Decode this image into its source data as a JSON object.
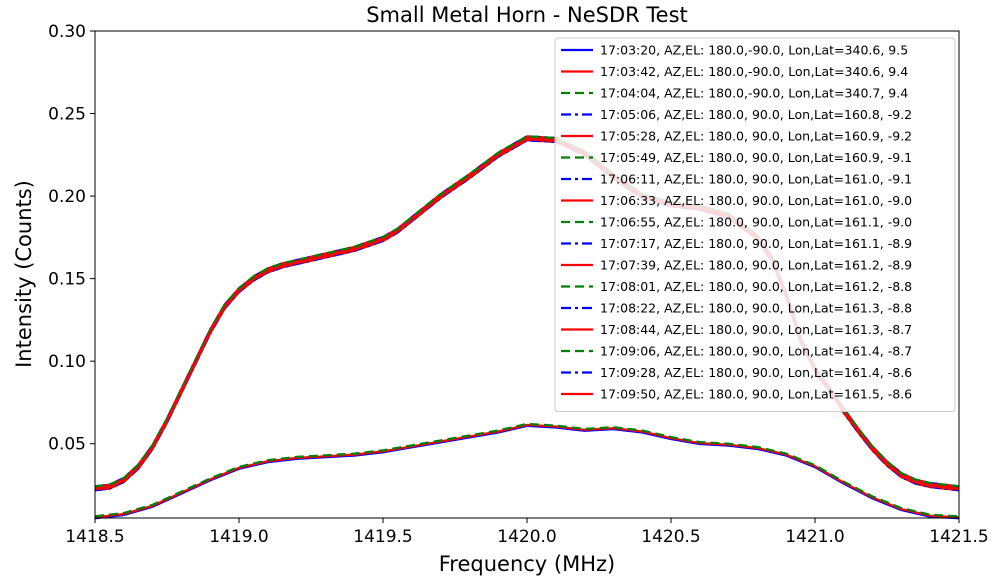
{
  "chart_data": {
    "type": "line",
    "title": "Small Metal Horn - NeSDR Test",
    "xlabel": "Frequency (MHz)",
    "ylabel": "Intensity (Counts)",
    "xlim": [
      1418.5,
      1421.5
    ],
    "ylim": [
      0.005,
      0.3
    ],
    "xticks": [
      "1418.5",
      "1419.0",
      "1419.5",
      "1420.0",
      "1420.5",
      "1421.0",
      "1421.5"
    ],
    "yticks": [
      "0.05",
      "0.10",
      "0.15",
      "0.20",
      "0.25",
      "0.30"
    ],
    "grid": false,
    "legend_position": "top-right",
    "profiles": {
      "high": {
        "x": [
          1418.5,
          1418.55,
          1418.6,
          1418.65,
          1418.7,
          1418.75,
          1418.8,
          1418.85,
          1418.9,
          1418.95,
          1419.0,
          1419.05,
          1419.1,
          1419.15,
          1419.2,
          1419.3,
          1419.4,
          1419.5,
          1419.55,
          1419.6,
          1419.7,
          1419.8,
          1419.9,
          1420.0,
          1420.1,
          1420.2,
          1420.3,
          1420.4,
          1420.5,
          1420.6,
          1420.7,
          1420.8,
          1420.85,
          1420.9,
          1420.95,
          1421.0,
          1421.05,
          1421.1,
          1421.15,
          1421.2,
          1421.25,
          1421.3,
          1421.35,
          1421.4,
          1421.45,
          1421.5
        ],
        "y": [
          0.023,
          0.024,
          0.028,
          0.036,
          0.048,
          0.064,
          0.082,
          0.1,
          0.118,
          0.133,
          0.143,
          0.15,
          0.155,
          0.158,
          0.16,
          0.164,
          0.168,
          0.174,
          0.179,
          0.186,
          0.2,
          0.212,
          0.225,
          0.235,
          0.234,
          0.226,
          0.212,
          0.2,
          0.195,
          0.193,
          0.188,
          0.175,
          0.162,
          0.14,
          0.113,
          0.095,
          0.083,
          0.07,
          0.058,
          0.047,
          0.038,
          0.031,
          0.027,
          0.025,
          0.024,
          0.023
        ]
      },
      "low": {
        "x": [
          1418.5,
          1418.6,
          1418.7,
          1418.8,
          1418.9,
          1419.0,
          1419.1,
          1419.2,
          1419.3,
          1419.4,
          1419.5,
          1419.6,
          1419.7,
          1419.8,
          1419.9,
          1420.0,
          1420.1,
          1420.2,
          1420.3,
          1420.4,
          1420.5,
          1420.6,
          1420.7,
          1420.8,
          1420.9,
          1421.0,
          1421.1,
          1421.2,
          1421.3,
          1421.4,
          1421.5
        ],
        "y": [
          0.006,
          0.008,
          0.013,
          0.021,
          0.029,
          0.036,
          0.04,
          0.042,
          0.043,
          0.044,
          0.046,
          0.049,
          0.052,
          0.055,
          0.058,
          0.062,
          0.061,
          0.059,
          0.06,
          0.058,
          0.054,
          0.051,
          0.05,
          0.048,
          0.044,
          0.037,
          0.027,
          0.018,
          0.011,
          0.007,
          0.006
        ]
      }
    },
    "series": [
      {
        "name": "17:03:20, AZ,EL: 180.0,-90.0, Lon,Lat=340.6,  9.5",
        "color": "#0000ff",
        "style": "solid",
        "profile": "low"
      },
      {
        "name": "17:03:42, AZ,EL: 180.0,-90.0, Lon,Lat=340.6,  9.4",
        "color": "#ff0000",
        "style": "solid",
        "profile": "low"
      },
      {
        "name": "17:04:04, AZ,EL: 180.0,-90.0, Lon,Lat=340.7,  9.4",
        "color": "#008000",
        "style": "dashed",
        "profile": "low"
      },
      {
        "name": "17:05:06, AZ,EL: 180.0, 90.0, Lon,Lat=160.8, -9.2",
        "color": "#0000ff",
        "style": "dashdot",
        "profile": "high"
      },
      {
        "name": "17:05:28, AZ,EL: 180.0, 90.0, Lon,Lat=160.9, -9.2",
        "color": "#ff0000",
        "style": "solid",
        "profile": "high"
      },
      {
        "name": "17:05:49, AZ,EL: 180.0, 90.0, Lon,Lat=160.9, -9.1",
        "color": "#008000",
        "style": "dashed",
        "profile": "high"
      },
      {
        "name": "17:06:11, AZ,EL: 180.0, 90.0, Lon,Lat=161.0, -9.1",
        "color": "#0000ff",
        "style": "dashdot",
        "profile": "high"
      },
      {
        "name": "17:06:33, AZ,EL: 180.0, 90.0, Lon,Lat=161.0, -9.0",
        "color": "#ff0000",
        "style": "solid",
        "profile": "high"
      },
      {
        "name": "17:06:55, AZ,EL: 180.0, 90.0, Lon,Lat=161.1, -9.0",
        "color": "#008000",
        "style": "dashed",
        "profile": "high"
      },
      {
        "name": "17:07:17, AZ,EL: 180.0, 90.0, Lon,Lat=161.1, -8.9",
        "color": "#0000ff",
        "style": "dashdot",
        "profile": "high"
      },
      {
        "name": "17:07:39, AZ,EL: 180.0, 90.0, Lon,Lat=161.2, -8.9",
        "color": "#ff0000",
        "style": "solid",
        "profile": "high"
      },
      {
        "name": "17:08:01, AZ,EL: 180.0, 90.0, Lon,Lat=161.2, -8.8",
        "color": "#008000",
        "style": "dashed",
        "profile": "high"
      },
      {
        "name": "17:08:22, AZ,EL: 180.0, 90.0, Lon,Lat=161.3, -8.8",
        "color": "#0000ff",
        "style": "dashdot",
        "profile": "high"
      },
      {
        "name": "17:08:44, AZ,EL: 180.0, 90.0, Lon,Lat=161.3, -8.7",
        "color": "#ff0000",
        "style": "solid",
        "profile": "high"
      },
      {
        "name": "17:09:06, AZ,EL: 180.0, 90.0, Lon,Lat=161.4, -8.7",
        "color": "#008000",
        "style": "dashed",
        "profile": "high"
      },
      {
        "name": "17:09:28, AZ,EL: 180.0, 90.0, Lon,Lat=161.4, -8.6",
        "color": "#0000ff",
        "style": "dashdot",
        "profile": "high"
      },
      {
        "name": "17:09:50, AZ,EL: 180.0, 90.0, Lon,Lat=161.5, -8.6",
        "color": "#ff0000",
        "style": "solid",
        "profile": "high"
      }
    ]
  }
}
